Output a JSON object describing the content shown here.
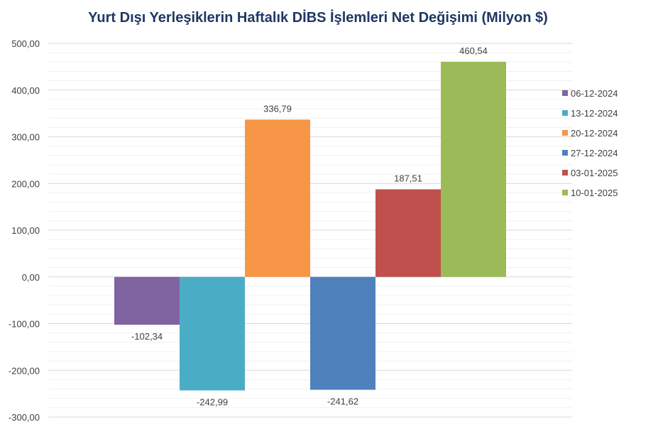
{
  "chart_data": {
    "type": "bar",
    "title": "Yurt Dışı Yerleşiklerin Haftalık DİBS İşlemleri Net Değişimi (Milyon $)",
    "xlabel": "",
    "ylabel": "",
    "ylim": [
      -300,
      500
    ],
    "y_ticks": [
      500,
      400,
      300,
      200,
      100,
      0,
      -100,
      -200,
      -300
    ],
    "y_tick_labels": [
      "500,00",
      "400,00",
      "300,00",
      "200,00",
      "100,00",
      "0,00",
      "-100,00",
      "-200,00",
      "-300,00"
    ],
    "grid": true,
    "legend_position": "right",
    "series": [
      {
        "name": "06-12-2024",
        "value": -102.34,
        "label": "-102,34",
        "color": "#8064a2"
      },
      {
        "name": "13-12-2024",
        "value": -242.99,
        "label": "-242,99",
        "color": "#4bacc6"
      },
      {
        "name": "20-12-2024",
        "value": 336.79,
        "label": "336,79",
        "color": "#f79646"
      },
      {
        "name": "27-12-2024",
        "value": -241.62,
        "label": "-241,62",
        "color": "#4f81bd"
      },
      {
        "name": "03-01-2025",
        "value": 187.51,
        "label": "187,51",
        "color": "#c0504d"
      },
      {
        "name": "10-01-2025",
        "value": 460.54,
        "label": "460,54",
        "color": "#9bbb59"
      }
    ]
  }
}
